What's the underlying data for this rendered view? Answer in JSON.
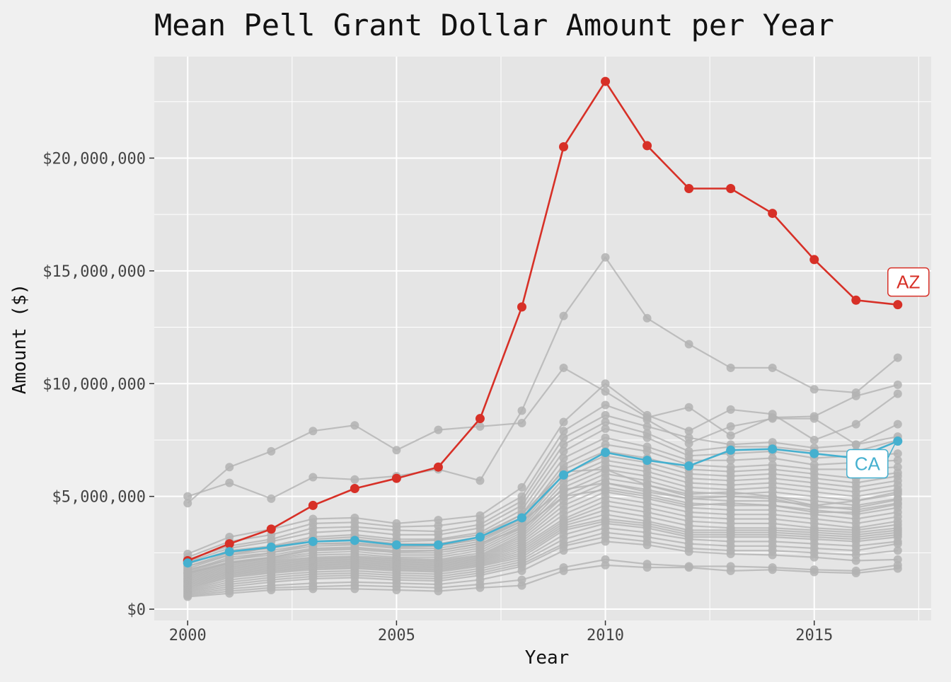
{
  "chart_data": {
    "type": "line",
    "title": "Mean Pell Grant Dollar Amount per Year",
    "xlabel": "Year",
    "ylabel": "Amount ($)",
    "xlim": [
      1999.2,
      2017.8
    ],
    "ylim": [
      -500000,
      24500000
    ],
    "x_ticks": [
      2000,
      2005,
      2010,
      2015
    ],
    "x_tick_labels": [
      "2000",
      "2005",
      "2010",
      "2015"
    ],
    "y_ticks": [
      0,
      5000000,
      10000000,
      15000000,
      20000000
    ],
    "y_tick_labels": [
      "$0",
      "$5,000,000",
      "$10,000,000",
      "$15,000,000",
      "$20,000,000"
    ],
    "grid": true,
    "legend": "none",
    "colors": {
      "background_panel": "#e5e5e5",
      "background_plot": "#f0f0f0",
      "grid": "#ffffff",
      "other_states": "#b3b3b3",
      "highlight_az": "#d73027",
      "highlight_ca": "#45b0cf"
    },
    "x": [
      2000,
      2001,
      2002,
      2003,
      2004,
      2005,
      2006,
      2007,
      2008,
      2009,
      2010,
      2011,
      2012,
      2013,
      2014,
      2015,
      2016,
      2017
    ],
    "highlight_series": [
      {
        "name": "AZ",
        "color": "#d73027",
        "values": [
          2150000,
          2900000,
          3550000,
          4600000,
          5350000,
          5800000,
          6300000,
          8450000,
          13400000,
          20500000,
          23400000,
          20550000,
          18650000,
          18650000,
          17550000,
          15500000,
          13700000,
          13500000
        ]
      },
      {
        "name": "CA",
        "color": "#45b0cf",
        "values": [
          2050000,
          2550000,
          2750000,
          3000000,
          3050000,
          2850000,
          2850000,
          3200000,
          4050000,
          5950000,
          6950000,
          6600000,
          6350000,
          7050000,
          7100000,
          6900000,
          6700000,
          7450000
        ]
      }
    ],
    "background_series": [
      [
        5000000,
        5600000,
        4900000,
        5850000,
        5750000,
        5900000,
        6200000,
        5700000,
        8800000,
        13000000,
        15600000,
        12900000,
        11750000,
        10700000,
        10700000,
        9750000,
        9600000,
        11150000
      ],
      [
        4700000,
        6300000,
        7000000,
        7900000,
        8150000,
        7050000,
        7950000,
        8100000,
        8250000,
        10700000,
        9650000,
        8500000,
        8950000,
        7700000,
        8500000,
        8550000,
        9450000,
        9950000
      ],
      [
        2450000,
        3200000,
        3550000,
        4000000,
        4050000,
        3800000,
        3950000,
        4150000,
        5400000,
        8300000,
        10000000,
        8600000,
        7900000,
        8850000,
        8650000,
        7500000,
        8200000,
        9550000
      ],
      [
        2300000,
        3000000,
        3300000,
        3800000,
        3850000,
        3650000,
        3700000,
        3950000,
        5000000,
        7900000,
        9050000,
        8400000,
        7350000,
        8100000,
        8450000,
        8450000,
        7300000,
        8200000
      ],
      [
        2200000,
        2800000,
        3100000,
        3600000,
        3650000,
        3500000,
        3450000,
        3750000,
        4800000,
        7600000,
        8600000,
        8100000,
        7600000,
        7300000,
        7400000,
        7150000,
        7300000,
        7650000
      ],
      [
        2100000,
        2700000,
        3000000,
        3400000,
        3500000,
        3300000,
        3300000,
        3600000,
        4600000,
        7300000,
        8300000,
        7800000,
        7000000,
        7200000,
        7200000,
        7000000,
        7000000,
        7500000
      ],
      [
        2000000,
        2600000,
        2800000,
        3200000,
        3300000,
        3100000,
        3100000,
        3400000,
        4400000,
        7000000,
        8000000,
        7600000,
        6800000,
        6900000,
        7000000,
        6700000,
        6800000,
        6900000
      ],
      [
        1900000,
        2500000,
        2700000,
        3000000,
        3100000,
        2900000,
        2900000,
        3200000,
        4200000,
        6700000,
        7600000,
        7200000,
        6600000,
        6600000,
        6700000,
        6400000,
        6500000,
        6600000
      ],
      [
        1800000,
        2400000,
        2600000,
        2900000,
        2950000,
        2800000,
        2800000,
        3100000,
        4000000,
        6400000,
        7300000,
        7000000,
        6400000,
        6300000,
        6400000,
        6200000,
        6200000,
        6300000
      ],
      [
        1700000,
        2300000,
        2500000,
        2800000,
        2850000,
        2700000,
        2700000,
        3000000,
        3900000,
        6200000,
        7000000,
        6700000,
        6200000,
        6100000,
        6200000,
        6000000,
        5800000,
        6050000
      ],
      [
        1650000,
        2200000,
        2400000,
        2700000,
        2750000,
        2600000,
        2600000,
        2900000,
        3800000,
        6000000,
        6800000,
        6500000,
        6000000,
        5900000,
        6000000,
        5800000,
        5600000,
        5900000
      ],
      [
        1600000,
        2100000,
        2300000,
        2600000,
        2650000,
        2500000,
        2500000,
        2800000,
        3700000,
        5800000,
        6600000,
        6300000,
        5800000,
        5700000,
        5800000,
        5600000,
        5400000,
        5700000
      ],
      [
        1550000,
        2050000,
        2250000,
        2500000,
        2550000,
        2400000,
        2400000,
        2700000,
        3600000,
        5600000,
        6400000,
        6100000,
        5600000,
        5500000,
        5600000,
        5400000,
        5200000,
        5500000
      ],
      [
        1500000,
        2000000,
        2200000,
        2400000,
        2450000,
        2300000,
        2300000,
        2600000,
        3500000,
        5400000,
        6200000,
        5900000,
        5400000,
        5300000,
        5400000,
        5200000,
        5000000,
        5300000
      ],
      [
        1450000,
        1950000,
        2150000,
        2300000,
        2350000,
        2250000,
        2200000,
        2500000,
        3400000,
        5200000,
        6000000,
        5700000,
        5200000,
        5100000,
        5200000,
        5000000,
        4800000,
        5100000
      ],
      [
        1400000,
        1900000,
        2100000,
        2250000,
        2300000,
        2200000,
        2150000,
        2400000,
        3300000,
        5000000,
        5800000,
        5500000,
        5000000,
        5000000,
        5000000,
        4800000,
        4600000,
        4900000
      ],
      [
        1350000,
        1850000,
        2050000,
        2200000,
        2250000,
        2150000,
        2100000,
        2350000,
        3200000,
        4800000,
        5600000,
        5300000,
        4900000,
        4800000,
        4800000,
        4600000,
        4400000,
        4700000
      ],
      [
        1300000,
        1800000,
        2000000,
        2150000,
        2200000,
        2100000,
        2050000,
        2300000,
        3100000,
        4600000,
        5400000,
        5100000,
        4700000,
        4600000,
        4600000,
        4400000,
        4200000,
        4500000
      ],
      [
        1250000,
        1750000,
        1950000,
        2100000,
        2150000,
        2050000,
        2000000,
        2250000,
        3000000,
        4400000,
        5200000,
        4900000,
        4500000,
        4400000,
        4400000,
        4200000,
        4000000,
        4300000
      ],
      [
        1200000,
        1700000,
        1900000,
        2050000,
        2100000,
        2000000,
        1950000,
        2200000,
        2900000,
        4200000,
        5000000,
        4700000,
        4300000,
        4200000,
        4200000,
        4000000,
        3800000,
        4100000
      ],
      [
        1150000,
        1650000,
        1850000,
        2000000,
        2050000,
        1950000,
        1900000,
        2150000,
        2800000,
        4000000,
        4800000,
        4500000,
        4100000,
        4000000,
        4000000,
        3800000,
        3600000,
        3900000
      ],
      [
        1100000,
        1600000,
        1800000,
        1950000,
        2000000,
        1900000,
        1850000,
        2100000,
        2700000,
        3900000,
        4600000,
        4300000,
        3900000,
        3800000,
        3800000,
        3600000,
        3500000,
        3750000
      ],
      [
        1050000,
        1550000,
        1750000,
        1900000,
        1950000,
        1850000,
        1800000,
        2050000,
        2600000,
        3800000,
        4400000,
        4100000,
        3700000,
        3600000,
        3600000,
        3500000,
        3400000,
        3600000
      ],
      [
        1000000,
        1500000,
        1700000,
        1850000,
        1900000,
        1800000,
        1750000,
        2000000,
        2500000,
        3700000,
        4200000,
        3900000,
        3500000,
        3500000,
        3500000,
        3400000,
        3300000,
        3500000
      ],
      [
        950000,
        1450000,
        1650000,
        1800000,
        1850000,
        1750000,
        1700000,
        1950000,
        2400000,
        3600000,
        4000000,
        3800000,
        3400000,
        3400000,
        3400000,
        3300000,
        3200000,
        3400000
      ],
      [
        900000,
        1400000,
        1600000,
        1750000,
        1800000,
        1700000,
        1650000,
        1900000,
        2300000,
        3500000,
        3900000,
        3700000,
        3300000,
        3300000,
        3300000,
        3200000,
        3100000,
        3300000
      ],
      [
        850000,
        1300000,
        1500000,
        1650000,
        1700000,
        1600000,
        1550000,
        1800000,
        2200000,
        3300000,
        3800000,
        3600000,
        3200000,
        3200000,
        3200000,
        3100000,
        3000000,
        3200000
      ],
      [
        800000,
        1200000,
        1400000,
        1550000,
        1600000,
        1500000,
        1450000,
        1700000,
        2100000,
        3100000,
        3600000,
        3400000,
        3100000,
        3000000,
        3000000,
        2900000,
        2800000,
        3000000
      ],
      [
        750000,
        1100000,
        1300000,
        1450000,
        1500000,
        1400000,
        1350000,
        1600000,
        2000000,
        2900000,
        3400000,
        3200000,
        2900000,
        2800000,
        2800000,
        2700000,
        2600000,
        2900000
      ],
      [
        700000,
        1000000,
        1200000,
        1350000,
        1400000,
        1300000,
        1250000,
        1500000,
        1900000,
        2800000,
        3200000,
        3000000,
        2700000,
        2600000,
        2600000,
        2500000,
        2400000,
        2600000
      ],
      [
        650000,
        900000,
        1050000,
        1150000,
        1200000,
        1150000,
        1100000,
        1300000,
        1700000,
        2600000,
        3000000,
        2850000,
        2550000,
        2450000,
        2400000,
        2300000,
        2150000,
        2200000
      ],
      [
        600000,
        800000,
        950000,
        1000000,
        1050000,
        1000000,
        950000,
        1100000,
        1300000,
        1850000,
        2200000,
        2000000,
        1900000,
        1900000,
        1850000,
        1750000,
        1700000,
        1950000
      ],
      [
        550000,
        700000,
        850000,
        900000,
        900000,
        850000,
        800000,
        950000,
        1050000,
        1700000,
        1950000,
        1850000,
        1850000,
        1700000,
        1750000,
        1650000,
        1600000,
        1800000
      ],
      [
        1900000,
        2400000,
        2750000,
        3100000,
        3200000,
        3000000,
        3050000,
        3300000,
        4200000,
        6100000,
        6200000,
        5500000,
        5100000,
        5200000,
        5000000,
        4600000,
        4800000,
        5200000
      ],
      [
        1750000,
        2200000,
        2500000,
        2900000,
        2900000,
        2750000,
        2800000,
        3100000,
        3900000,
        5300000,
        5600000,
        5200000,
        4900000,
        5000000,
        4900000,
        4500000,
        4500000,
        4850000
      ],
      [
        1600000,
        2050000,
        2300000,
        2650000,
        2700000,
        2550000,
        2600000,
        2900000,
        3600000,
        5000000,
        5300000,
        5000000,
        4600000,
        4700000,
        4600000,
        4300000,
        4300000,
        4650000
      ]
    ]
  }
}
